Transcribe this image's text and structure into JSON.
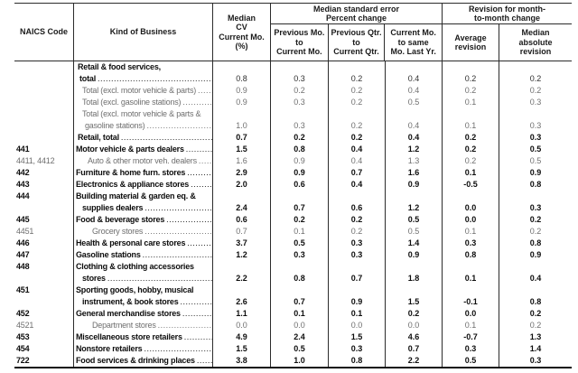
{
  "header": {
    "naics": "NAICS Code",
    "kind": "Kind of Business",
    "median_cv": "Median\nCV\nCurrent Mo.\n(%)",
    "se_group": "Median standard error\nPercent change",
    "se_cols": [
      "Previous Mo.\nto\nCurrent Mo.",
      "Previous Qtr.\nto\nCurrent Qtr.",
      "Current Mo.\nto same\nMo. Last Yr."
    ],
    "rev_group": "Revision for month-\nto-month change",
    "rev_cols": [
      "Average\nrevision",
      "Median\nabsolute\nrevision"
    ]
  },
  "table": {
    "rows": [
      {
        "naics": "",
        "label": "Retail & food services,",
        "indent": 1,
        "label_style": "bold",
        "value_style": "norm",
        "dots": false,
        "values": [
          "",
          "",
          "",
          "",
          "",
          ""
        ]
      },
      {
        "naics": "",
        "label": "total",
        "indent": 2,
        "label_style": "bold",
        "value_style": "norm",
        "dots": true,
        "values": [
          "0.8",
          "0.3",
          "0.2",
          "0.4",
          "0.2",
          "0.2"
        ]
      },
      {
        "naics": "",
        "label": "Total (excl. motor vehicle & parts)",
        "indent": 3,
        "label_style": "gray",
        "value_style": "gray",
        "dots": true,
        "values": [
          "0.9",
          "0.2",
          "0.2",
          "0.4",
          "0.2",
          "0.2"
        ]
      },
      {
        "naics": "",
        "label": "Total (excl. gasoline stations)",
        "indent": 3,
        "label_style": "gray",
        "value_style": "gray",
        "dots": true,
        "values": [
          "0.9",
          "0.3",
          "0.2",
          "0.5",
          "0.1",
          "0.3"
        ]
      },
      {
        "naics": "",
        "label": "Total (excl. motor vehicle & parts &",
        "indent": 3,
        "label_style": "gray",
        "value_style": "gray",
        "dots": false,
        "values": [
          "",
          "",
          "",
          "",
          "",
          ""
        ]
      },
      {
        "naics": "",
        "label": "gasoline stations)",
        "indent": 4,
        "label_style": "gray",
        "value_style": "gray",
        "dots": true,
        "values": [
          "1.0",
          "0.3",
          "0.2",
          "0.4",
          "0.1",
          "0.3"
        ]
      },
      {
        "naics": "",
        "label": "Retail, total",
        "indent": 1,
        "label_style": "bold",
        "value_style": "bold",
        "dots": true,
        "values": [
          "0.7",
          "0.2",
          "0.2",
          "0.4",
          "0.2",
          "0.3"
        ]
      },
      {
        "naics": "441",
        "label": "Motor vehicle & parts dealers",
        "indent": 0,
        "label_style": "bold",
        "value_style": "bold",
        "dots": true,
        "values": [
          "1.5",
          "0.8",
          "0.4",
          "1.2",
          "0.2",
          "0.5"
        ]
      },
      {
        "naics": "4411, 4412",
        "label": "Auto & other motor veh. dealers",
        "indent": 5,
        "label_style": "gray",
        "value_style": "gray",
        "dots": true,
        "values": [
          "1.6",
          "0.9",
          "0.4",
          "1.3",
          "0.2",
          "0.5"
        ]
      },
      {
        "naics": "442",
        "label": "Furniture & home furn. stores",
        "indent": 0,
        "label_style": "bold",
        "value_style": "bold",
        "dots": true,
        "values": [
          "2.9",
          "0.9",
          "0.7",
          "1.6",
          "0.1",
          "0.9"
        ]
      },
      {
        "naics": "443",
        "label": "Electronics & appliance stores",
        "indent": 0,
        "label_style": "bold",
        "value_style": "bold",
        "dots": true,
        "values": [
          "2.0",
          "0.6",
          "0.4",
          "0.9",
          "-0.5",
          "0.8"
        ]
      },
      {
        "naics": "444",
        "label": "Building material & garden eq. &",
        "indent": 0,
        "label_style": "bold",
        "value_style": "bold",
        "dots": false,
        "values": [
          "",
          "",
          "",
          "",
          "",
          ""
        ]
      },
      {
        "naics": "",
        "label": "supplies dealers",
        "indent": 3,
        "label_style": "bold",
        "value_style": "bold",
        "dots": true,
        "values": [
          "2.4",
          "0.7",
          "0.6",
          "1.2",
          "0.0",
          "0.3"
        ]
      },
      {
        "naics": "445",
        "label": "Food & beverage stores",
        "indent": 0,
        "label_style": "bold",
        "value_style": "bold",
        "dots": true,
        "values": [
          "0.6",
          "0.2",
          "0.2",
          "0.5",
          "0.0",
          "0.2"
        ]
      },
      {
        "naics": "4451",
        "label": "Grocery stores",
        "indent": 6,
        "label_style": "gray",
        "value_style": "gray",
        "dots": true,
        "values": [
          "0.7",
          "0.1",
          "0.2",
          "0.5",
          "0.1",
          "0.2"
        ]
      },
      {
        "naics": "446",
        "label": "Health & personal care stores",
        "indent": 0,
        "label_style": "bold",
        "value_style": "bold",
        "dots": true,
        "values": [
          "3.7",
          "0.5",
          "0.3",
          "1.4",
          "0.3",
          "0.8"
        ]
      },
      {
        "naics": "447",
        "label": "Gasoline stations",
        "indent": 0,
        "label_style": "bold",
        "value_style": "bold",
        "dots": true,
        "values": [
          "1.2",
          "0.3",
          "0.3",
          "0.9",
          "0.8",
          "0.9"
        ]
      },
      {
        "naics": "448",
        "label": "Clothing & clothing accessories",
        "indent": 0,
        "label_style": "bold",
        "value_style": "bold",
        "dots": false,
        "values": [
          "",
          "",
          "",
          "",
          "",
          ""
        ]
      },
      {
        "naics": "",
        "label": "stores",
        "indent": 3,
        "label_style": "bold",
        "value_style": "bold",
        "dots": true,
        "values": [
          "2.2",
          "0.8",
          "0.7",
          "1.8",
          "0.1",
          "0.4"
        ]
      },
      {
        "naics": "451",
        "label": "Sporting goods, hobby, musical",
        "indent": 0,
        "label_style": "bold",
        "value_style": "bold",
        "dots": false,
        "values": [
          "",
          "",
          "",
          "",
          "",
          ""
        ]
      },
      {
        "naics": "",
        "label": "instrument, & book stores",
        "indent": 3,
        "label_style": "bold",
        "value_style": "bold",
        "dots": true,
        "values": [
          "2.6",
          "0.7",
          "0.9",
          "1.5",
          "-0.1",
          "0.8"
        ]
      },
      {
        "naics": "452",
        "label": "General merchandise stores",
        "indent": 0,
        "label_style": "bold",
        "value_style": "bold",
        "dots": true,
        "values": [
          "1.1",
          "0.1",
          "0.1",
          "0.2",
          "0.0",
          "0.2"
        ]
      },
      {
        "naics": "4521",
        "label": "Department stores",
        "indent": 6,
        "label_style": "gray",
        "value_style": "gray",
        "dots": true,
        "values": [
          "0.0",
          "0.0",
          "0.0",
          "0.0",
          "0.1",
          "0.2"
        ]
      },
      {
        "naics": "453",
        "label": "Miscellaneous store retailers",
        "indent": 0,
        "label_style": "bold",
        "value_style": "bold",
        "dots": true,
        "values": [
          "4.9",
          "2.4",
          "1.5",
          "4.6",
          "-0.7",
          "1.3"
        ]
      },
      {
        "naics": "454",
        "label": "Nonstore retailers",
        "indent": 0,
        "label_style": "bold",
        "value_style": "bold",
        "dots": true,
        "values": [
          "1.5",
          "0.5",
          "0.3",
          "0.7",
          "0.3",
          "1.4"
        ]
      },
      {
        "naics": "722",
        "label": "Food services & drinking places",
        "indent": 0,
        "label_style": "bold",
        "value_style": "bold",
        "dots": true,
        "values": [
          "3.8",
          "1.0",
          "0.8",
          "2.2",
          "0.5",
          "0.3"
        ]
      }
    ]
  }
}
